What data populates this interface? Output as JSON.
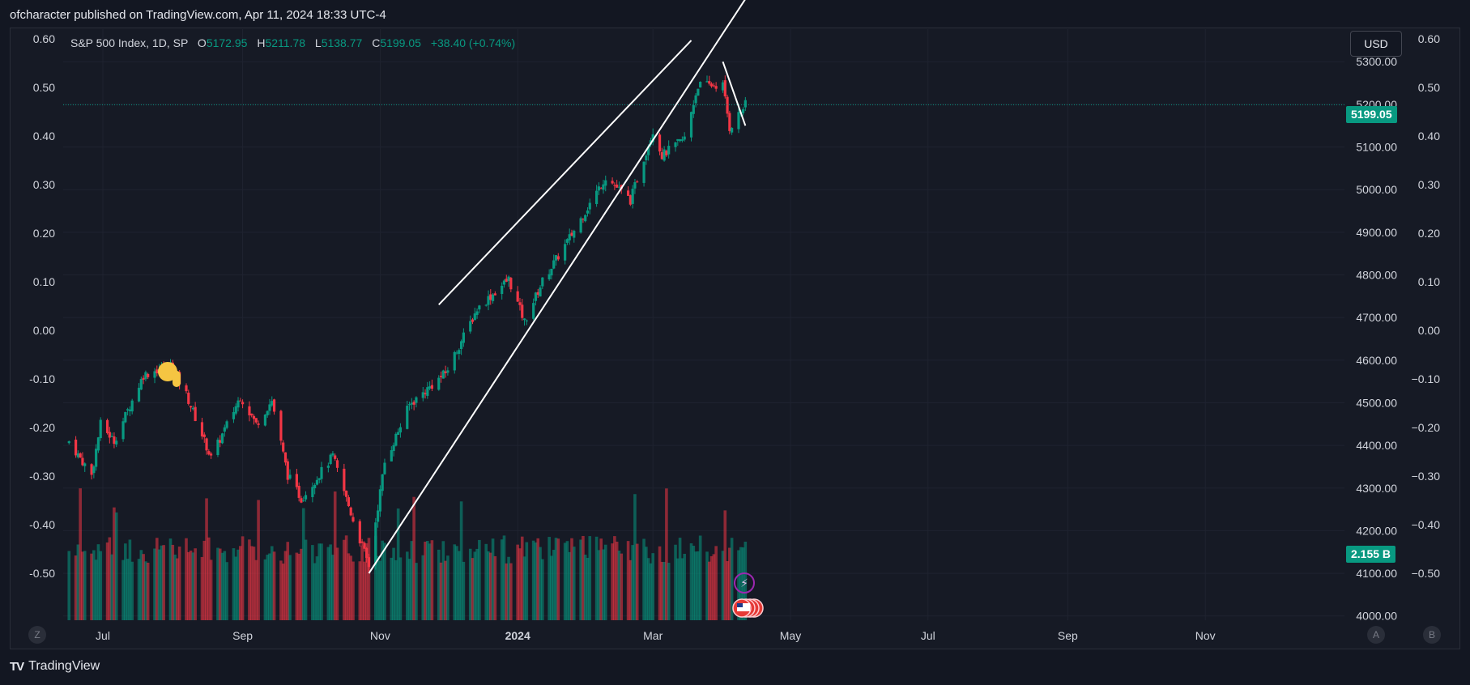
{
  "header": {
    "publisher_text": "ofcharacter published on TradingView.com, Apr 11, 2024 18:33 UTC-4"
  },
  "legend": {
    "symbol": "S&P 500 Index, 1D, SP",
    "o_label": "O",
    "o_value": "5172.95",
    "h_label": "H",
    "h_value": "5211.78",
    "l_label": "L",
    "l_value": "5138.77",
    "c_label": "C",
    "c_value": "5199.05",
    "change": "+38.40 (+0.74%)"
  },
  "currency_button": "USD",
  "price_tag": "5199.05",
  "volume_tag": "2.155 B",
  "footer": {
    "brand": "TradingView",
    "logo": "TV"
  },
  "scale_buttons": {
    "left": "Z",
    "auto": "A",
    "log": "B"
  },
  "colors": {
    "up": "#089981",
    "down": "#f23645",
    "background": "#161a25",
    "grid": "#1f2330",
    "text": "#d1d4dc",
    "trendline": "#ffffff"
  },
  "chart_data": {
    "type": "candlestick",
    "title": "S&P 500 Index, 1D, SP",
    "price_axis": {
      "ticks": [
        "5300.00",
        "5200.00",
        "5100.00",
        "5000.00",
        "4900.00",
        "4800.00",
        "4700.00",
        "4600.00",
        "4500.00",
        "4400.00",
        "4300.00",
        "4200.00",
        "4100.00",
        "4000.00"
      ],
      "range": [
        3990,
        5365
      ]
    },
    "overlay_axis": {
      "ticks": [
        "0.60",
        "0.50",
        "0.40",
        "0.30",
        "0.20",
        "0.10",
        "0.00",
        "−0.10",
        "−0.20",
        "−0.30",
        "−0.40",
        "−0.50"
      ],
      "left_ticks": [
        "0.60",
        "0.50",
        "0.40",
        "0.30",
        "0.20",
        "0.10",
        "0.00",
        "-0.10",
        "-0.20",
        "-0.30",
        "-0.40",
        "-0.50"
      ],
      "range": [
        -0.6,
        0.6
      ]
    },
    "x_axis_labels": [
      "Jul",
      "Sep",
      "Nov",
      "2024",
      "Mar",
      "May",
      "Jul",
      "Sep",
      "Nov"
    ],
    "last_close": 5199.05,
    "volume_last": "2.155 B",
    "close_series": {
      "start": "2023-06-16",
      "end": "2024-04-11",
      "keypoints": [
        [
          "2023-06-16",
          4410
        ],
        [
          "2023-06-26",
          4330
        ],
        [
          "2023-06-30",
          4450
        ],
        [
          "2023-07-06",
          4410
        ],
        [
          "2023-07-19",
          4565
        ],
        [
          "2023-07-31",
          4590
        ],
        [
          "2023-08-07",
          4520
        ],
        [
          "2023-08-18",
          4370
        ],
        [
          "2023-08-31",
          4515
        ],
        [
          "2023-09-07",
          4450
        ],
        [
          "2023-09-14",
          4505
        ],
        [
          "2023-09-21",
          4330
        ],
        [
          "2023-09-27",
          4275
        ],
        [
          "2023-10-11",
          4375
        ],
        [
          "2023-10-20",
          4225
        ],
        [
          "2023-10-27",
          4118
        ],
        [
          "2023-11-03",
          4360
        ],
        [
          "2023-11-14",
          4495
        ],
        [
          "2023-11-30",
          4570
        ],
        [
          "2023-12-14",
          4720
        ],
        [
          "2023-12-28",
          4790
        ],
        [
          "2024-01-04",
          4690
        ],
        [
          "2024-01-12",
          4785
        ],
        [
          "2024-01-25",
          4895
        ],
        [
          "2024-02-09",
          5030
        ],
        [
          "2024-02-20",
          4975
        ],
        [
          "2024-03-01",
          5140
        ],
        [
          "2024-03-05",
          5080
        ],
        [
          "2024-03-15",
          5120
        ],
        [
          "2024-03-21",
          5245
        ],
        [
          "2024-04-01",
          5245
        ],
        [
          "2024-04-04",
          5145
        ],
        [
          "2024-04-11",
          5199.05
        ]
      ]
    },
    "trendlines": [
      {
        "from": [
          "2023-10-27",
          4100
        ],
        "to": [
          "2024-04-25",
          5560
        ]
      },
      {
        "from": [
          "2023-11-27",
          4730
        ],
        "to": [
          "2024-03-18",
          5350
        ]
      },
      {
        "from": [
          "2024-04-01",
          5300
        ],
        "to": [
          "2024-04-11",
          5150
        ]
      }
    ]
  }
}
